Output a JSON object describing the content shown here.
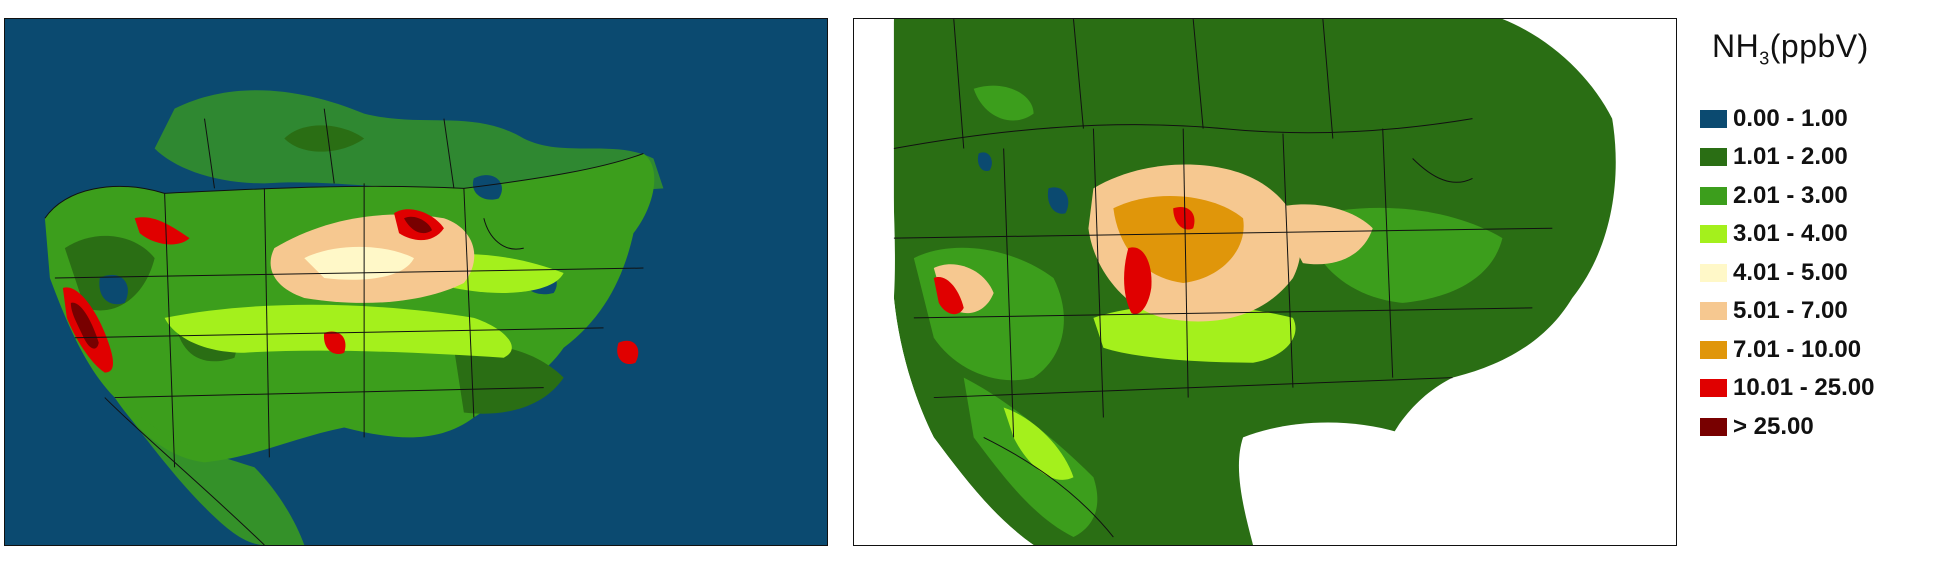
{
  "legend": {
    "title_main": "NH",
    "title_sub": "3",
    "title_unit": "(ppbV)",
    "items": [
      {
        "label": "0.00 - 1.00",
        "color": "#0b4a70"
      },
      {
        "label": "1.01 - 2.00",
        "color": "#2a6e14"
      },
      {
        "label": "2.01 - 3.00",
        "color": "#3c9e1c"
      },
      {
        "label": "3.01 - 4.00",
        "color": "#a4f01c"
      },
      {
        "label": "4.01 - 5.00",
        "color": "#fff8c8"
      },
      {
        "label": "5.01 - 7.00",
        "color": "#f6c890"
      },
      {
        "label": "7.01 - 10.00",
        "color": "#e0960a"
      },
      {
        "label": "10.01 - 25.00",
        "color": "#e00000"
      },
      {
        "label": "> 25.00",
        "color": "#780000"
      }
    ]
  },
  "maps": [
    {
      "id": "left",
      "background": "ocean-blue-fill"
    },
    {
      "id": "right",
      "background": "white-fill"
    }
  ]
}
